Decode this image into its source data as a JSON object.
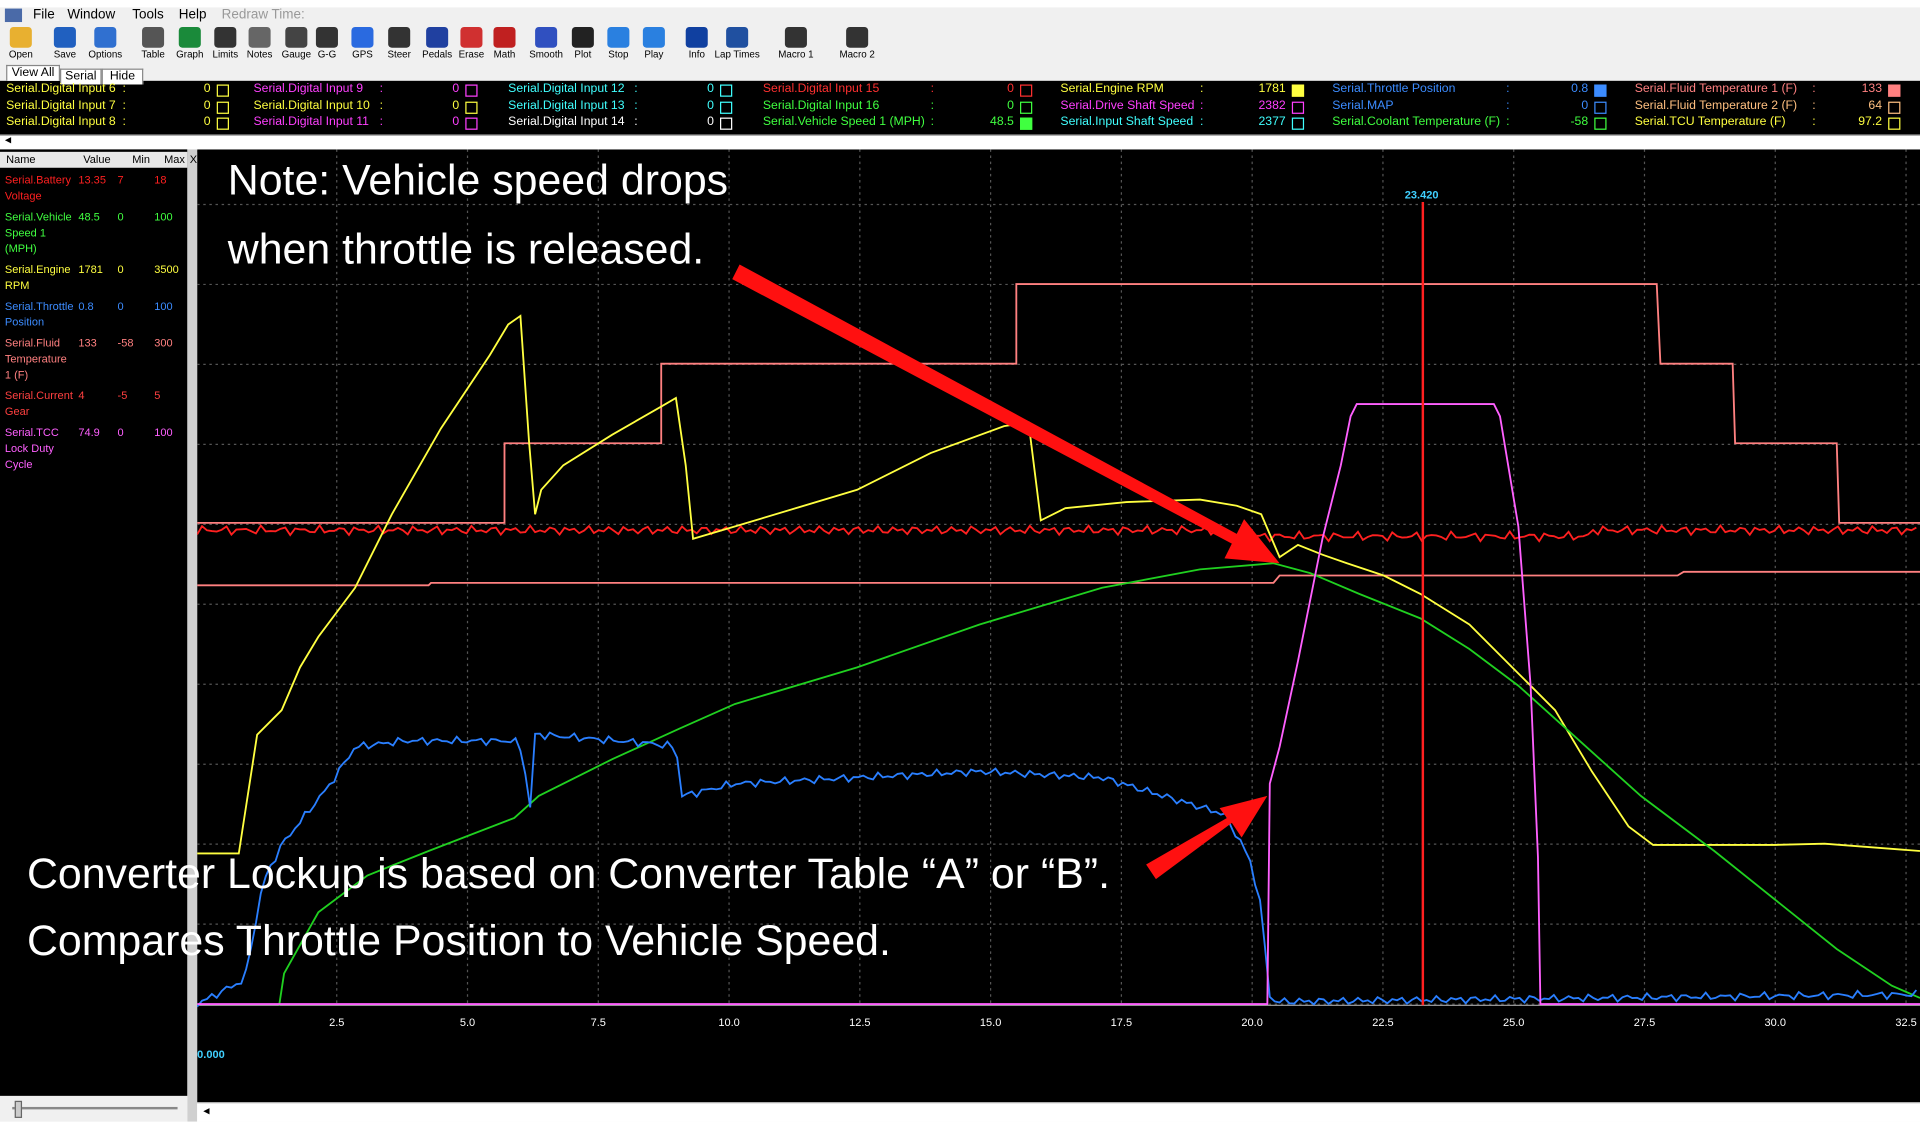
{
  "menu": [
    "File",
    "Window",
    "Tools",
    "Help",
    "Redraw Time:"
  ],
  "toolbar": [
    "Open",
    "Save",
    "Options",
    "Table",
    "Graph",
    "Limits",
    "Notes",
    "Gauge",
    "G-G",
    "GPS",
    "Steer",
    "Pedals",
    "Erase",
    "Math",
    "Smooth",
    "Plot",
    "Stop",
    "Play",
    "Info",
    "Lap Times",
    "Macro 1",
    "Macro 2"
  ],
  "tabs": [
    "View All",
    "Serial",
    "Hide"
  ],
  "channel_separator": ":",
  "channels": [
    [
      {
        "name": "Serial.Digital Input 6",
        "value": 0,
        "color": "#ffff40"
      },
      {
        "name": "Serial.Digital Input 7",
        "value": 0,
        "color": "#ffff40"
      },
      {
        "name": "Serial.Digital Input 8",
        "value": 0,
        "color": "#ffff40"
      }
    ],
    [
      {
        "name": "Serial.Digital Input 9",
        "value": 0,
        "color": "#ff40ff"
      },
      {
        "name": "Serial.Digital Input 10",
        "value": 0,
        "color": "#ffff40"
      },
      {
        "name": "Serial.Digital Input 11",
        "value": 0,
        "color": "#ff40ff"
      }
    ],
    [
      {
        "name": "Serial.Digital Input 12",
        "value": 0,
        "color": "#40ffff"
      },
      {
        "name": "Serial.Digital Input 13",
        "value": 0,
        "color": "#40ffff"
      },
      {
        "name": "Serial.Digital Input 14",
        "value": 0,
        "color": "#ffffff"
      }
    ],
    [
      {
        "name": "Serial.Digital Input 15",
        "value": 0,
        "color": "#ff3030"
      },
      {
        "name": "Serial.Digital Input 16",
        "value": 0,
        "color": "#40ff40"
      },
      {
        "name": "Serial.Vehicle Speed 1 (MPH)",
        "value": 48.5,
        "color": "#40ff40",
        "checked": true
      }
    ],
    [
      {
        "name": "Serial.Engine RPM",
        "value": 1781,
        "color": "#ffff40",
        "checked": true
      },
      {
        "name": "Serial.Drive Shaft Speed",
        "value": 2382,
        "color": "#ff40ff"
      },
      {
        "name": "Serial.Input Shaft Speed",
        "value": 2377,
        "color": "#40ffff"
      }
    ],
    [
      {
        "name": "Serial.Throttle Position",
        "value": 0.8,
        "color": "#3c8cff",
        "checked": true
      },
      {
        "name": "Serial.MAP",
        "value": 0,
        "color": "#3c8cff"
      },
      {
        "name": "Serial.Coolant Temperature (F)",
        "value": -58,
        "color": "#40ff40"
      }
    ],
    [
      {
        "name": "Serial.Fluid Temperature 1 (F)",
        "value": 133,
        "color": "#ff8080",
        "checked": true
      },
      {
        "name": "Serial.Fluid Temperature 2 (F)",
        "value": 64,
        "color": "#ffc080"
      },
      {
        "name": "Serial.TCU Temperature (F)",
        "value": 97.2,
        "color": "#ffff40"
      }
    ]
  ],
  "sidebar": {
    "headers": [
      "Name",
      "Value",
      "Min",
      "Max"
    ],
    "close": "X",
    "rows": [
      {
        "name": "Serial.Battery Voltage",
        "value": 13.35,
        "min": 7,
        "max": 18,
        "color": "#ff2020"
      },
      {
        "name": "Serial.Vehicle Speed 1 (MPH)",
        "value": 48.5,
        "min": 0,
        "max": 100,
        "color": "#40ff40"
      },
      {
        "name": "Serial.Engine RPM",
        "value": 1781,
        "min": 0,
        "max": 3500,
        "color": "#ffff40"
      },
      {
        "name": "Serial.Throttle Position",
        "value": 0.8,
        "min": 0,
        "max": 100,
        "color": "#3c8cff"
      },
      {
        "name": "Serial.Fluid Temperature 1 (F)",
        "value": 133,
        "min": -58,
        "max": 300,
        "color": "#ff8080"
      },
      {
        "name": "Serial.Current Gear",
        "value": 4,
        "min": -5,
        "max": 5,
        "color": "#ff4040"
      },
      {
        "name": "Serial.TCC Lock Duty Cycle",
        "value": 74.9,
        "min": 0,
        "max": 100,
        "color": "#ff60ff"
      }
    ]
  },
  "graph": {
    "xticks": [
      "2.5",
      "5.0",
      "7.5",
      "10.0",
      "12.5",
      "15.0",
      "17.5",
      "20.0",
      "22.5",
      "25.0",
      "27.5",
      "30.0",
      "32.5"
    ],
    "cursor": "23.420",
    "origin": "0.000"
  },
  "annotations": [
    "Note: Vehicle speed drops",
    "when throttle is released.",
    "Converter Lockup is based on Converter Table “A” or “B”.",
    "Compares Throttle Position to Vehicle Speed."
  ]
}
